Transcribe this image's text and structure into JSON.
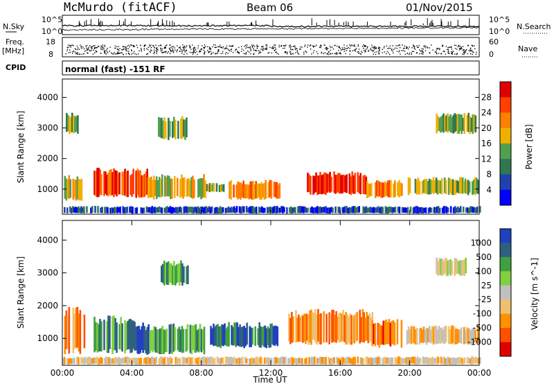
{
  "header": {
    "station": "McMurdo (fitACF)",
    "beam": "Beam 06",
    "date": "01/Nov/2015"
  },
  "strip": {
    "nsky_label": "N.Sky",
    "freq_label": "Freq.",
    "freq_unit": "[MHz]",
    "cpid_label": "CPID",
    "nsearch_label": "N.Search",
    "nave_label": "Nave",
    "left_top_tick": "10^5",
    "left_bot_tick": "10^0",
    "right_top_tick": "10^5",
    "right_bot_tick": "10^0",
    "freq_ticks": [
      "18",
      "8"
    ],
    "nave_ticks": [
      "60",
      "0"
    ],
    "cpid_text": "normal (fast) -151 RF"
  },
  "chart_data": [
    {
      "type": "heatmap",
      "panel": "power",
      "ylabel": "Slant Range [km]",
      "xlabel": "",
      "x_ticks": [
        "00:00",
        "04:00",
        "08:00",
        "12:00",
        "16:00",
        "20:00",
        "00:00"
      ],
      "xlim_hours": [
        0,
        24
      ],
      "ylim": [
        180,
        4600
      ],
      "y_ticks": [
        1000,
        2000,
        3000,
        4000
      ],
      "colorbar": {
        "label": "Power [dB]",
        "ticks": [
          "28",
          "24",
          "20",
          "16",
          "12",
          "8",
          "4"
        ],
        "colors": [
          "#e00000",
          "#ff4000",
          "#ff8000",
          "#f0b000",
          "#50a050",
          "#307850",
          "#2040b0",
          "#0000ff"
        ]
      },
      "regions": [
        {
          "t0": 0.1,
          "t1": 1.2,
          "r0": 600,
          "r1": 1500,
          "level": 3
        },
        {
          "t0": 1.8,
          "t1": 4.9,
          "r0": 700,
          "r1": 1700,
          "level": 1
        },
        {
          "t0": 4.9,
          "t1": 8.2,
          "r0": 650,
          "r1": 1500,
          "level": 3
        },
        {
          "t0": 8.2,
          "t1": 9.3,
          "r0": 900,
          "r1": 1200,
          "level": 4
        },
        {
          "t0": 9.5,
          "t1": 12.5,
          "r0": 650,
          "r1": 1300,
          "level": 2
        },
        {
          "t0": 14.0,
          "t1": 17.5,
          "r0": 800,
          "r1": 1600,
          "level": 0
        },
        {
          "t0": 17.5,
          "t1": 19.5,
          "r0": 700,
          "r1": 1300,
          "level": 2
        },
        {
          "t0": 19.8,
          "t1": 23.9,
          "r0": 800,
          "r1": 1400,
          "level": 4
        },
        {
          "t0": 0.2,
          "t1": 0.9,
          "r0": 2800,
          "r1": 3500,
          "level": 4
        },
        {
          "t0": 5.5,
          "t1": 7.2,
          "r0": 2600,
          "r1": 3400,
          "level": 4
        },
        {
          "t0": 21.5,
          "t1": 23.8,
          "r0": 2800,
          "r1": 3500,
          "level": 4
        },
        {
          "t0": 0.0,
          "t1": 24.0,
          "r0": 200,
          "r1": 450,
          "level": 6
        }
      ]
    },
    {
      "type": "heatmap",
      "panel": "velocity",
      "ylabel": "Slant Range [km]",
      "xlabel": "Time UT",
      "x_ticks": [
        "00:00",
        "04:00",
        "08:00",
        "12:00",
        "16:00",
        "20:00",
        "00:00"
      ],
      "xlim_hours": [
        0,
        24
      ],
      "ylim": [
        180,
        4600
      ],
      "y_ticks": [
        1000,
        2000,
        3000,
        4000
      ],
      "colorbar": {
        "label": "Velocity [m s^-1]",
        "ticks": [
          "1000",
          "500",
          "100",
          "25",
          "-25",
          "-100",
          "-500",
          "-1000"
        ],
        "colors": [
          "#2040c0",
          "#306080",
          "#40a040",
          "#80d040",
          "#c0c0c0",
          "#f0c070",
          "#ff9000",
          "#ff5000",
          "#e00000"
        ]
      },
      "regions": [
        {
          "t0": 0.1,
          "t1": 1.3,
          "r0": 500,
          "r1": 2000,
          "level": 6
        },
        {
          "t0": 1.8,
          "t1": 4.2,
          "r0": 500,
          "r1": 1700,
          "level": 2
        },
        {
          "t0": 4.2,
          "t1": 5.0,
          "r0": 500,
          "r1": 1500,
          "level": 0
        },
        {
          "t0": 5.0,
          "t1": 8.2,
          "r0": 500,
          "r1": 1500,
          "level": 2
        },
        {
          "t0": 8.5,
          "t1": 12.4,
          "r0": 700,
          "r1": 1500,
          "level": 1
        },
        {
          "t0": 13.0,
          "t1": 17.8,
          "r0": 800,
          "r1": 1900,
          "level": 6
        },
        {
          "t0": 17.8,
          "t1": 19.5,
          "r0": 700,
          "r1": 1600,
          "level": 7
        },
        {
          "t0": 19.8,
          "t1": 23.9,
          "r0": 800,
          "r1": 1400,
          "level": 5
        },
        {
          "t0": 21.5,
          "t1": 23.2,
          "r0": 2900,
          "r1": 3500,
          "level": 4
        },
        {
          "t0": 5.5,
          "t1": 7.2,
          "r0": 2600,
          "r1": 3400,
          "level": 2
        },
        {
          "t0": 0.0,
          "t1": 24.0,
          "r0": 200,
          "r1": 450,
          "level": 5
        }
      ]
    }
  ]
}
